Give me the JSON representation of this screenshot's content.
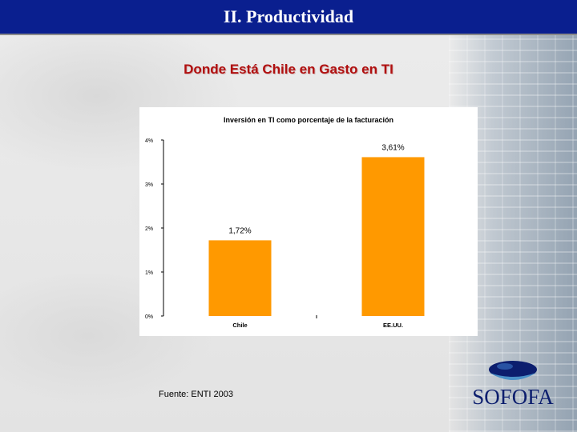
{
  "header": {
    "title": "II. Productividad"
  },
  "slide": {
    "subtitle": "Donde Está Chile en Gasto en TI",
    "source_note": "Fuente: ENTI 2003",
    "logo_text": "SOFOFA"
  },
  "colors": {
    "header_bg": "#0a1f8f",
    "subtitle": "#b01010",
    "bar": "#ff9900",
    "logo": "#0c1e6e"
  },
  "chart_data": {
    "type": "bar",
    "title": "Inversión en TI como porcentaje de la facturación",
    "categories": [
      "Chile",
      "EE.UU."
    ],
    "values": [
      1.72,
      3.61
    ],
    "data_labels": [
      "1,72%",
      "3,61%"
    ],
    "ylim": [
      0,
      4
    ],
    "yticks": [
      0,
      1,
      2,
      3,
      4
    ],
    "ytick_labels": [
      "0%",
      "1%",
      "2%",
      "3%",
      "4%"
    ],
    "xlabel": "",
    "ylabel": "",
    "grid": false,
    "legend": "none"
  }
}
